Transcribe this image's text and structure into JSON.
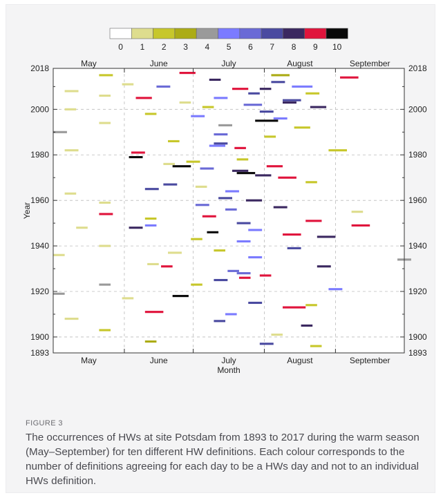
{
  "figure": {
    "label": "FIGURE 3",
    "caption": "The occurrences of HWs at site Potsdam from 1893 to 2017 during the warm season (May–September) for ten different HW definitions. Each colour corresponds to the number of definitions agreeing for each day to be a HWs day and not to an individual HWs definition."
  },
  "chart_data": {
    "type": "heatmap",
    "title": "",
    "xlabel": "Month",
    "ylabel": "Year",
    "x_months": [
      "May",
      "June",
      "July",
      "August",
      "September"
    ],
    "y_ticks": [
      1893,
      1900,
      1920,
      1940,
      1960,
      1980,
      2000,
      2018
    ],
    "ylim": [
      1893,
      2018
    ],
    "grid": true,
    "colorbar": {
      "position": "top",
      "labels": [
        "0",
        "1",
        "2",
        "3",
        "4",
        "5",
        "6",
        "7",
        "8",
        "9",
        "10"
      ],
      "colors": [
        "#ffffff",
        "#dedd8e",
        "#c7c72b",
        "#acac16",
        "#9a9a9a",
        "#7b7bff",
        "#6a6ad6",
        "#4a4aa0",
        "#3b2860",
        "#e0143c",
        "#0a0a0a"
      ]
    },
    "events": [
      [
        2016,
        55,
        7,
        9
      ],
      [
        2015,
        95,
        8,
        3
      ],
      [
        2015,
        20,
        6,
        2
      ],
      [
        2014,
        125,
        8,
        9
      ],
      [
        2013,
        68,
        5,
        8
      ],
      [
        2012,
        95,
        6,
        7
      ],
      [
        2011,
        30,
        5,
        1
      ],
      [
        2010,
        104,
        9,
        5
      ],
      [
        2010,
        45,
        6,
        6
      ],
      [
        2009,
        78,
        7,
        9
      ],
      [
        2009,
        90,
        5,
        8
      ],
      [
        2008,
        5,
        6,
        1
      ],
      [
        2007,
        85,
        5,
        7
      ],
      [
        2007,
        110,
        6,
        2
      ],
      [
        2006,
        20,
        5,
        1
      ],
      [
        2005,
        36,
        7,
        9
      ],
      [
        2005,
        70,
        6,
        5
      ],
      [
        2004,
        100,
        8,
        7
      ],
      [
        2003,
        55,
        5,
        1
      ],
      [
        2003,
        100,
        6,
        8
      ],
      [
        2002,
        83,
        8,
        6
      ],
      [
        2001,
        65,
        5,
        2
      ],
      [
        2001,
        112,
        7,
        8
      ],
      [
        2000,
        5,
        5,
        1
      ],
      [
        1999,
        90,
        6,
        7
      ],
      [
        1998,
        40,
        5,
        2
      ],
      [
        1997,
        60,
        6,
        5
      ],
      [
        1996,
        96,
        6,
        5
      ],
      [
        1995,
        88,
        10,
        10
      ],
      [
        1994,
        20,
        5,
        1
      ],
      [
        1993,
        72,
        6,
        4
      ],
      [
        1992,
        105,
        7,
        2
      ],
      [
        1990,
        0,
        6,
        4
      ],
      [
        1989,
        70,
        6,
        6
      ],
      [
        1988,
        92,
        5,
        2
      ],
      [
        1986,
        50,
        5,
        2
      ],
      [
        1985,
        70,
        6,
        7
      ],
      [
        1984,
        68,
        7,
        5
      ],
      [
        1983,
        79,
        5,
        9
      ],
      [
        1982,
        5,
        6,
        1
      ],
      [
        1982,
        120,
        8,
        2
      ],
      [
        1981,
        34,
        6,
        9
      ],
      [
        1979,
        33,
        6,
        10
      ],
      [
        1978,
        80,
        5,
        2
      ],
      [
        1977,
        58,
        6,
        2
      ],
      [
        1976,
        48,
        5,
        1
      ],
      [
        1975,
        52,
        8,
        10
      ],
      [
        1975,
        93,
        7,
        9
      ],
      [
        1974,
        64,
        6,
        6
      ],
      [
        1973,
        78,
        7,
        8
      ],
      [
        1972,
        80,
        8,
        10
      ],
      [
        1971,
        88,
        7,
        8
      ],
      [
        1970,
        98,
        8,
        9
      ],
      [
        1968,
        110,
        5,
        2
      ],
      [
        1967,
        48,
        6,
        7
      ],
      [
        1966,
        62,
        5,
        1
      ],
      [
        1965,
        40,
        6,
        7
      ],
      [
        1964,
        75,
        6,
        5
      ],
      [
        1963,
        5,
        5,
        1
      ],
      [
        1961,
        72,
        6,
        7
      ],
      [
        1960,
        84,
        7,
        8
      ],
      [
        1959,
        20,
        5,
        1
      ],
      [
        1958,
        62,
        6,
        6
      ],
      [
        1957,
        96,
        6,
        8
      ],
      [
        1956,
        75,
        5,
        6
      ],
      [
        1955,
        130,
        5,
        1
      ],
      [
        1954,
        20,
        6,
        9
      ],
      [
        1953,
        65,
        6,
        9
      ],
      [
        1952,
        40,
        5,
        2
      ],
      [
        1951,
        110,
        7,
        9
      ],
      [
        1950,
        80,
        6,
        7
      ],
      [
        1949,
        40,
        5,
        5
      ],
      [
        1949,
        130,
        8,
        9
      ],
      [
        1948,
        10,
        5,
        1
      ],
      [
        1948,
        33,
        6,
        8
      ],
      [
        1947,
        85,
        6,
        5
      ],
      [
        1946,
        67,
        5,
        10
      ],
      [
        1945,
        100,
        8,
        9
      ],
      [
        1944,
        115,
        8,
        8
      ],
      [
        1943,
        60,
        5,
        2
      ],
      [
        1942,
        80,
        6,
        5
      ],
      [
        1940,
        20,
        5,
        1
      ],
      [
        1939,
        102,
        6,
        7
      ],
      [
        1938,
        70,
        5,
        2
      ],
      [
        1937,
        50,
        6,
        1
      ],
      [
        1936,
        0,
        5,
        1
      ],
      [
        1935,
        85,
        6,
        5
      ],
      [
        1934,
        150,
        6,
        4
      ],
      [
        1932,
        41,
        5,
        1
      ],
      [
        1931,
        47,
        5,
        9
      ],
      [
        1931,
        115,
        6,
        8
      ],
      [
        1929,
        76,
        5,
        6
      ],
      [
        1928,
        80,
        6,
        6
      ],
      [
        1927,
        90,
        5,
        9
      ],
      [
        1926,
        81,
        5,
        9
      ],
      [
        1925,
        70,
        6,
        7
      ],
      [
        1923,
        20,
        5,
        4
      ],
      [
        1923,
        60,
        5,
        2
      ],
      [
        1921,
        120,
        6,
        5
      ],
      [
        1919,
        0,
        5,
        4
      ],
      [
        1918,
        52,
        7,
        10
      ],
      [
        1917,
        30,
        5,
        1
      ],
      [
        1915,
        85,
        6,
        7
      ],
      [
        1914,
        110,
        5,
        2
      ],
      [
        1913,
        100,
        10,
        9
      ],
      [
        1911,
        40,
        8,
        9
      ],
      [
        1910,
        75,
        5,
        5
      ],
      [
        1908,
        5,
        6,
        1
      ],
      [
        1907,
        70,
        5,
        7
      ],
      [
        1905,
        108,
        5,
        8
      ],
      [
        1903,
        20,
        5,
        2
      ],
      [
        1901,
        95,
        5,
        1
      ],
      [
        1898,
        40,
        5,
        3
      ],
      [
        1897,
        90,
        6,
        7
      ],
      [
        1896,
        112,
        5,
        2
      ]
    ]
  }
}
